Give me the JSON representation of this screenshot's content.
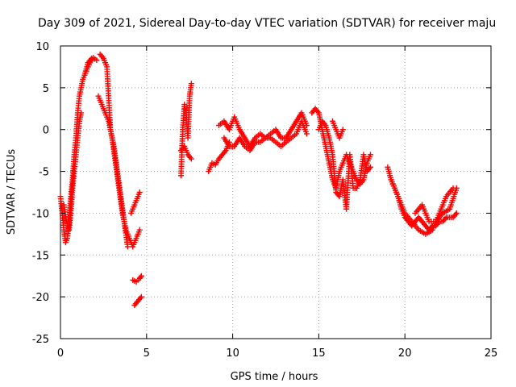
{
  "chart_data": {
    "type": "scatter",
    "title": "Day 309 of 2021, Sidereal Day-to-day VTEC variation (SDTVAR) for receiver maju",
    "xlabel": "GPS time / hours",
    "ylabel": "SDTVAR / TECUs",
    "xlim": [
      0,
      25
    ],
    "ylim": [
      -25,
      10
    ],
    "xticks": [
      0,
      5,
      10,
      15,
      20,
      25
    ],
    "yticks": [
      10,
      5,
      0,
      -5,
      -10,
      -15,
      -20,
      -25
    ],
    "grid": true,
    "marker": "plus",
    "color": "#ff0000",
    "series": [
      {
        "name": "segment-1",
        "x": [
          0.0,
          0.1,
          0.2,
          0.3,
          0.4,
          0.5,
          0.6,
          0.7,
          0.8,
          0.9,
          1.0,
          1.1,
          1.2,
          1.3,
          1.5,
          1.7,
          1.9,
          2.1
        ],
        "y": [
          -8,
          -10,
          -12,
          -13.5,
          -13,
          -11,
          -8,
          -6,
          -3,
          -1,
          2,
          4,
          5,
          6,
          7,
          8,
          8.6,
          8.3
        ]
      },
      {
        "name": "segment-2",
        "x": [
          0.2,
          0.35,
          0.5,
          0.6,
          0.7,
          0.8,
          0.9,
          1.0,
          1.1,
          1.2
        ],
        "y": [
          -9,
          -11,
          -12,
          -10,
          -7,
          -5,
          -3,
          -1,
          1,
          2
        ]
      },
      {
        "name": "segment-3",
        "x": [
          1.4,
          1.6,
          1.8
        ],
        "y": [
          6.5,
          8,
          8.5
        ]
      },
      {
        "name": "segment-4",
        "x": [
          2.2,
          2.4,
          2.6,
          2.8,
          3.0,
          3.2,
          3.4,
          3.6,
          3.8,
          4.0,
          4.2,
          4.4,
          4.6
        ],
        "y": [
          4,
          3,
          2,
          1,
          -1,
          -4,
          -7,
          -10,
          -12,
          -13,
          -14,
          -13,
          -12
        ]
      },
      {
        "name": "segment-5",
        "x": [
          2.3,
          2.5,
          2.7,
          2.9,
          3.1,
          3.3,
          3.5,
          3.7,
          3.9
        ],
        "y": [
          9,
          8.5,
          7.5,
          0,
          -2,
          -5,
          -8,
          -11,
          -14
        ]
      },
      {
        "name": "segment-6",
        "x": [
          4.1,
          4.3,
          4.5,
          4.6
        ],
        "y": [
          -10,
          -9,
          -8,
          -7.5
        ]
      },
      {
        "name": "segment-7",
        "x": [
          4.2,
          4.4,
          4.6,
          4.7
        ],
        "y": [
          -18,
          -18.2,
          -17.8,
          -17.5
        ]
      },
      {
        "name": "segment-8",
        "x": [
          4.3,
          4.5,
          4.7
        ],
        "y": [
          -21,
          -20.5,
          -20
        ]
      },
      {
        "name": "segment-9",
        "x": [
          7.0,
          7.1,
          7.2,
          7.3,
          7.4,
          7.5,
          7.6
        ],
        "y": [
          -5.5,
          0,
          3,
          2,
          -1,
          4,
          5.5
        ]
      },
      {
        "name": "segment-10",
        "x": [
          7.0,
          7.2,
          7.4,
          7.6
        ],
        "y": [
          -2.5,
          -2,
          -3,
          -3.5
        ]
      },
      {
        "name": "segment-11",
        "x": [
          8.6,
          8.8,
          9.0,
          9.2,
          9.4,
          9.6,
          9.8
        ],
        "y": [
          -5,
          -4,
          -4.2,
          -3.5,
          -3,
          -2.5,
          -1.5
        ]
      },
      {
        "name": "segment-12",
        "x": [
          9.2,
          9.5,
          9.8,
          10.1,
          10.4,
          10.7,
          11.0,
          11.3,
          11.6,
          11.9,
          12.2,
          12.5,
          12.8,
          13.1,
          13.4,
          13.7,
          14.0,
          14.3
        ],
        "y": [
          0.5,
          1,
          0,
          1.5,
          0,
          -1,
          -2,
          -1,
          -0.5,
          -1,
          -0.5,
          0,
          -1,
          -1,
          0,
          1,
          2,
          0.5
        ]
      },
      {
        "name": "segment-13",
        "x": [
          9.5,
          9.8,
          10.1,
          10.4,
          10.7,
          11.0,
          11.3,
          11.6,
          11.9,
          12.2,
          12.5,
          12.8,
          13.1,
          13.4,
          13.7,
          14.0,
          14.3
        ],
        "y": [
          -1,
          -2,
          -2,
          -1,
          -2,
          -2.5,
          -1.5,
          -1.5,
          -1,
          -1,
          -1.5,
          -2,
          -1.5,
          -1,
          -0.5,
          1,
          -0.5
        ]
      },
      {
        "name": "segment-14",
        "x": [
          14.6,
          14.8,
          15.0,
          15.2,
          15.4,
          15.6,
          15.8,
          16.0,
          16.2,
          16.4,
          16.6,
          16.8,
          17.0,
          17.2,
          17.4,
          17.6,
          17.8,
          18.0
        ],
        "y": [
          2,
          2.5,
          2,
          0,
          -2,
          -4,
          -6,
          -7,
          -5,
          -4,
          -3,
          -4,
          -5,
          -6,
          -6.5,
          -6,
          -4,
          -3
        ]
      },
      {
        "name": "segment-15",
        "x": [
          15.0,
          15.2,
          15.4,
          15.6,
          15.8,
          16.0,
          16.2,
          16.4,
          16.6,
          16.8,
          17.0,
          17.2,
          17.4,
          17.6,
          17.8,
          18.0
        ],
        "y": [
          0,
          1,
          0.5,
          -1,
          -3,
          -7.5,
          -8,
          -6,
          -9.5,
          -3,
          -7,
          -7,
          -6,
          -3,
          -5,
          -4.5
        ]
      },
      {
        "name": "segment-16",
        "x": [
          15.8,
          16.0,
          16.2,
          16.4
        ],
        "y": [
          1,
          0,
          -1,
          0
        ]
      },
      {
        "name": "segment-17",
        "x": [
          19.0,
          19.2,
          19.4,
          19.6,
          19.8,
          20.0,
          20.2,
          20.4,
          20.6,
          20.8,
          21.0,
          21.2,
          21.4,
          21.6,
          21.8,
          22.0,
          22.2,
          22.4,
          22.6,
          22.8,
          23.0
        ],
        "y": [
          -4.5,
          -6,
          -7,
          -8,
          -9.5,
          -10.5,
          -11,
          -11.5,
          -11,
          -10.5,
          -11,
          -11.5,
          -12,
          -11.5,
          -11.5,
          -11,
          -11,
          -10.5,
          -10.5,
          -10.5,
          -10
        ]
      },
      {
        "name": "segment-18",
        "x": [
          19.2,
          19.6,
          20.0,
          20.4,
          20.8,
          21.2,
          21.6,
          22.0,
          22.4,
          22.8
        ],
        "y": [
          -6,
          -8,
          -10,
          -11,
          -12,
          -12.5,
          -12,
          -10,
          -8,
          -7
        ]
      },
      {
        "name": "segment-19",
        "x": [
          20.6,
          21.0,
          21.4,
          21.8,
          22.2,
          22.6,
          23.0
        ],
        "y": [
          -10,
          -9,
          -11,
          -11,
          -10,
          -9.5,
          -7
        ]
      }
    ]
  }
}
